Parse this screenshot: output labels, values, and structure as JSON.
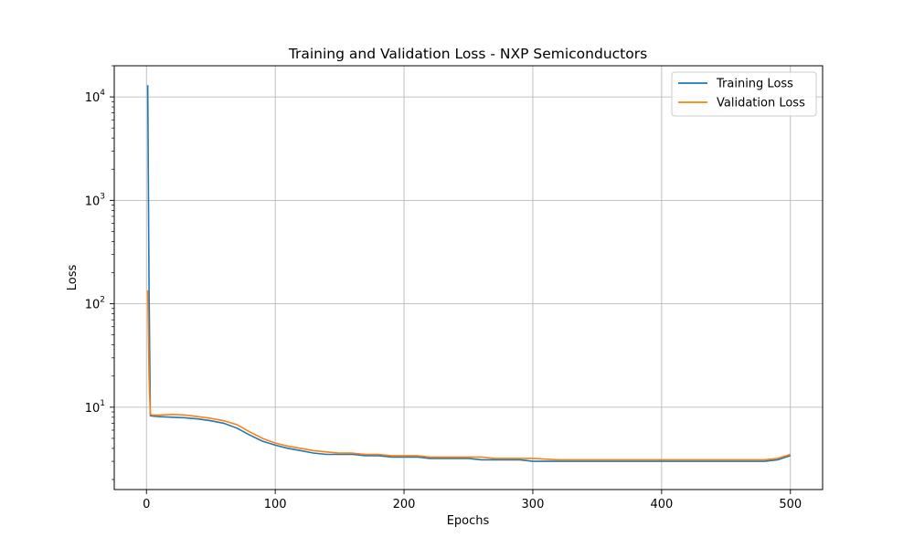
{
  "chart_data": {
    "type": "line",
    "title": "Training and Validation Loss - NXP Semiconductors",
    "xlabel": "Epochs",
    "ylabel": "Loss",
    "yscale": "log",
    "xlim": [
      -25,
      525
    ],
    "ylim": [
      1.6,
      20000
    ],
    "grid": true,
    "legend_position": "top-right",
    "x_ticks": [
      {
        "value": 0,
        "label": "0"
      },
      {
        "value": 100,
        "label": "100"
      },
      {
        "value": 200,
        "label": "200"
      },
      {
        "value": 300,
        "label": "300"
      },
      {
        "value": 400,
        "label": "400"
      },
      {
        "value": 500,
        "label": "500"
      }
    ],
    "y_ticks": [
      {
        "value": 10,
        "base": "10",
        "exp": "1"
      },
      {
        "value": 100,
        "base": "10",
        "exp": "2"
      },
      {
        "value": 1000,
        "base": "10",
        "exp": "3"
      },
      {
        "value": 10000,
        "base": "10",
        "exp": "4"
      }
    ],
    "series": [
      {
        "name": "Training Loss",
        "color": "#1f77b4",
        "x": [
          1,
          2,
          3,
          5,
          10,
          20,
          30,
          40,
          50,
          60,
          70,
          80,
          90,
          100,
          110,
          120,
          130,
          140,
          150,
          160,
          170,
          180,
          190,
          200,
          210,
          220,
          230,
          240,
          250,
          260,
          270,
          280,
          290,
          300,
          320,
          340,
          360,
          380,
          400,
          420,
          440,
          460,
          480,
          490,
          500
        ],
        "values": [
          13000,
          150,
          8.3,
          8.2,
          8.1,
          8.0,
          7.9,
          7.7,
          7.4,
          7.0,
          6.3,
          5.4,
          4.7,
          4.3,
          4.0,
          3.8,
          3.6,
          3.5,
          3.5,
          3.5,
          3.4,
          3.4,
          3.3,
          3.3,
          3.3,
          3.2,
          3.2,
          3.2,
          3.2,
          3.1,
          3.1,
          3.1,
          3.1,
          3.0,
          3.0,
          3.0,
          3.0,
          3.0,
          3.0,
          3.0,
          3.0,
          3.0,
          3.0,
          3.1,
          3.4
        ]
      },
      {
        "name": "Validation Loss",
        "color": "#ff7f0e",
        "x": [
          1,
          2,
          3,
          5,
          10,
          20,
          30,
          40,
          50,
          60,
          70,
          80,
          90,
          100,
          110,
          120,
          130,
          140,
          150,
          160,
          170,
          180,
          190,
          200,
          210,
          220,
          230,
          240,
          250,
          260,
          270,
          280,
          290,
          300,
          320,
          340,
          360,
          380,
          400,
          420,
          440,
          460,
          480,
          490,
          500
        ],
        "values": [
          135,
          20,
          8.5,
          8.4,
          8.4,
          8.5,
          8.4,
          8.1,
          7.8,
          7.4,
          6.8,
          5.8,
          5.0,
          4.5,
          4.2,
          4.0,
          3.8,
          3.7,
          3.6,
          3.6,
          3.5,
          3.5,
          3.4,
          3.4,
          3.4,
          3.3,
          3.3,
          3.3,
          3.3,
          3.3,
          3.2,
          3.2,
          3.2,
          3.2,
          3.1,
          3.1,
          3.1,
          3.1,
          3.1,
          3.1,
          3.1,
          3.1,
          3.1,
          3.2,
          3.5
        ]
      }
    ]
  }
}
